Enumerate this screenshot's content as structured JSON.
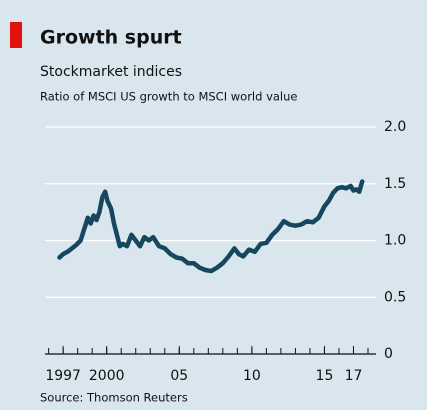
{
  "chart_data": {
    "type": "line",
    "title": "Growth spurt",
    "subtitle": "Stockmarket indices",
    "y_label": "Ratio of MSCI US growth to MSCI world value",
    "source": "Source: Thomson Reuters",
    "xlim": [
      1995.75,
      2018
    ],
    "xticks": [
      {
        "value": 1997,
        "label": "1997"
      },
      2000,
      {
        "value": 2005,
        "label": "05"
      },
      {
        "value": 2010,
        "label": "10"
      },
      {
        "value": 2015,
        "label": "15"
      },
      {
        "value": 2017,
        "label": "17"
      }
    ],
    "ylim": [
      0,
      2
    ],
    "yticks": [
      0,
      0.5,
      {
        "value": 1,
        "label": "1.0"
      },
      1.5,
      {
        "value": 2,
        "label": "2.0"
      }
    ],
    "grid": true,
    "x": [
      1996.75,
      1997.0,
      1997.3,
      1997.6,
      1997.9,
      1998.2,
      1998.5,
      1998.7,
      1998.9,
      1999.1,
      1999.3,
      1999.5,
      1999.7,
      1999.9,
      2000.05,
      2000.3,
      2000.5,
      2000.7,
      2000.9,
      2001.1,
      2001.4,
      2001.7,
      2002.0,
      2002.3,
      2002.6,
      2002.9,
      2003.2,
      2003.6,
      2004.0,
      2004.4,
      2004.8,
      2005.2,
      2005.6,
      2006.0,
      2006.4,
      2006.8,
      2007.2,
      2007.6,
      2008.0,
      2008.4,
      2008.8,
      2009.1,
      2009.4,
      2009.8,
      2010.2,
      2010.6,
      2011.0,
      2011.4,
      2011.8,
      2012.2,
      2012.6,
      2013.0,
      2013.4,
      2013.8,
      2014.2,
      2014.6,
      2015.0,
      2015.3,
      2015.6,
      2015.9,
      2016.2,
      2016.5,
      2016.8,
      2017.0,
      2017.2,
      2017.4,
      2017.6
    ],
    "series": [
      {
        "name": "MSCI US growth / MSCI world value",
        "color": "#15475e",
        "values": [
          0.85,
          0.88,
          0.9,
          0.93,
          0.96,
          1.0,
          1.12,
          1.2,
          1.15,
          1.22,
          1.18,
          1.25,
          1.38,
          1.43,
          1.35,
          1.28,
          1.15,
          1.05,
          0.95,
          0.97,
          0.95,
          1.05,
          1.0,
          0.95,
          1.03,
          1.0,
          1.03,
          0.95,
          0.93,
          0.88,
          0.85,
          0.84,
          0.8,
          0.8,
          0.76,
          0.74,
          0.73,
          0.76,
          0.8,
          0.86,
          0.93,
          0.88,
          0.86,
          0.92,
          0.9,
          0.97,
          0.98,
          1.05,
          1.1,
          1.17,
          1.14,
          1.13,
          1.14,
          1.17,
          1.16,
          1.2,
          1.3,
          1.35,
          1.42,
          1.46,
          1.47,
          1.46,
          1.48,
          1.44,
          1.45,
          1.43,
          1.52
        ]
      }
    ]
  }
}
